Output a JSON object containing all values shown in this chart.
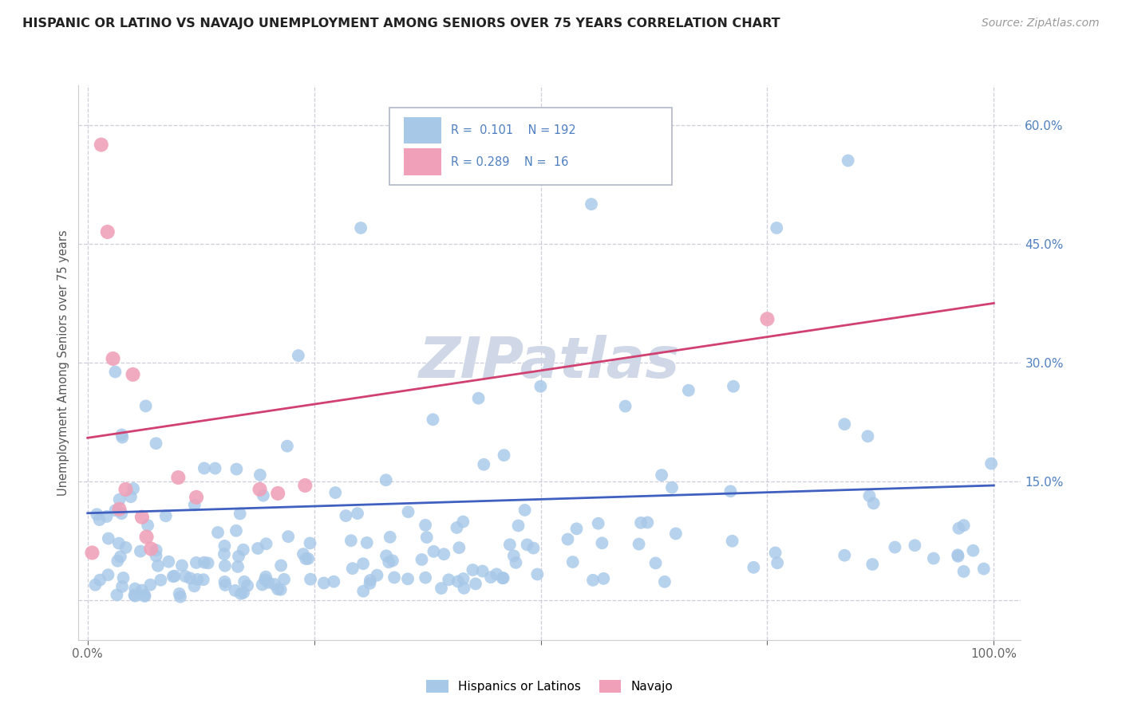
{
  "title": "HISPANIC OR LATINO VS NAVAJO UNEMPLOYMENT AMONG SENIORS OVER 75 YEARS CORRELATION CHART",
  "source": "Source: ZipAtlas.com",
  "ylabel": "Unemployment Among Seniors over 75 years",
  "blue_color": "#a8c8e8",
  "pink_color": "#f0a0b8",
  "blue_line_color": "#4060c0",
  "pink_line_color": "#d04070",
  "tick_color": "#5080c0",
  "grid_color": "#c8c8d8",
  "watermark_color": "#d0d8e8",
  "legend_border_color": "#b0b8c8",
  "blue_r": "0.101",
  "blue_n": "192",
  "pink_r": "0.289",
  "pink_n": "16",
  "blue_line_y0": 0.11,
  "blue_line_y1": 0.145,
  "pink_line_y0": 0.205,
  "pink_line_y1": 0.375,
  "ylim_min": -0.05,
  "ylim_max": 0.65,
  "xlim_min": -0.01,
  "xlim_max": 1.03
}
